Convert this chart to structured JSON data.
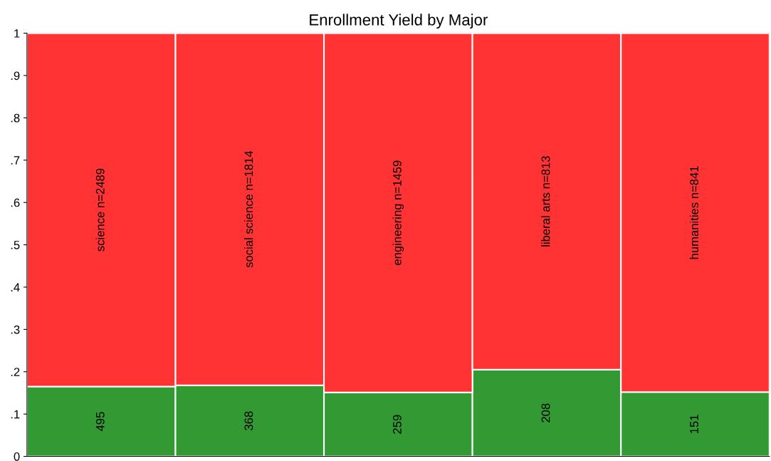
{
  "chart_data": {
    "type": "bar",
    "title": "Enrollment Yield by Major",
    "stacked": true,
    "categories": [
      "science n=2489",
      "social science n=1814",
      "engineering n=1459",
      "liberal arts n=813",
      "humanities n=841"
    ],
    "series": [
      {
        "color": "#339933",
        "values": [
          0.165,
          0.168,
          0.151,
          0.205,
          0.152
        ]
      },
      {
        "color": "#ff3333",
        "values": [
          0.835,
          0.832,
          0.849,
          0.795,
          0.848
        ]
      }
    ],
    "annotations": [
      "495",
      "368",
      "259",
      "208",
      "151"
    ],
    "ylim": [
      0,
      1
    ],
    "yticks": [
      0,
      {
        "value": 0.1,
        "label": ".1"
      },
      {
        "value": 0.2,
        "label": ".2"
      },
      {
        "value": 0.3,
        "label": ".3"
      },
      {
        "value": 0.4,
        "label": ".4"
      },
      {
        "value": 0.5,
        "label": ".5"
      },
      {
        "value": 0.6,
        "label": ".6"
      },
      {
        "value": 0.7,
        "label": ".7"
      },
      {
        "value": 0.8,
        "label": ".8"
      },
      {
        "value": 0.9,
        "label": ".9"
      },
      1
    ],
    "grid": false
  }
}
